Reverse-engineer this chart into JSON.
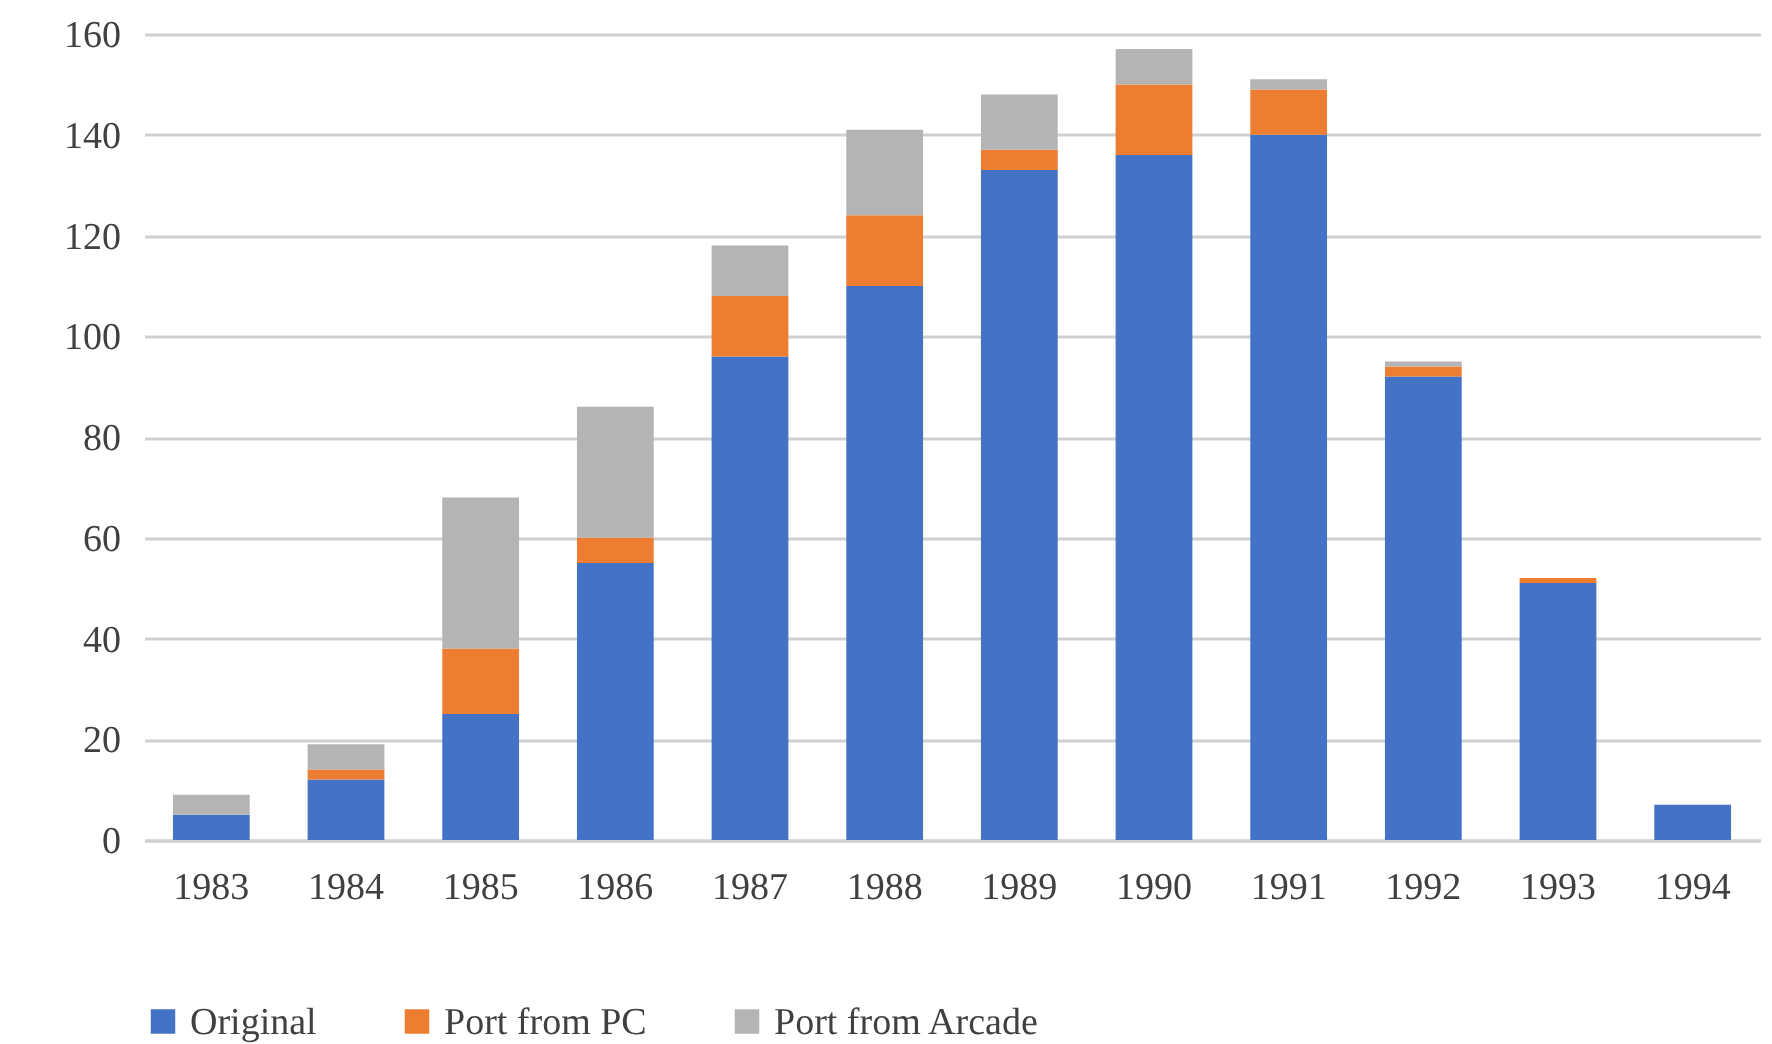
{
  "chart_data": {
    "type": "bar",
    "stacked": true,
    "categories": [
      "1983",
      "1984",
      "1985",
      "1986",
      "1987",
      "1988",
      "1989",
      "1990",
      "1991",
      "1992",
      "1993",
      "1994"
    ],
    "series": [
      {
        "name": "Original",
        "color": "#4472c4",
        "values": [
          5,
          12,
          25,
          55,
          96,
          110,
          133,
          136,
          140,
          92,
          51,
          7
        ]
      },
      {
        "name": "Port from PC",
        "color": "#ed7d31",
        "values": [
          0,
          2,
          13,
          5,
          12,
          14,
          4,
          14,
          9,
          2,
          1,
          0
        ]
      },
      {
        "name": "Port from Arcade",
        "color": "#b4b4b4",
        "values": [
          4,
          5,
          30,
          26,
          10,
          17,
          11,
          7,
          2,
          1,
          0,
          0
        ]
      }
    ],
    "ylim": [
      0,
      160
    ],
    "yticks": [
      0,
      20,
      40,
      60,
      80,
      100,
      120,
      140,
      160
    ],
    "grid": "y",
    "legend": "bottom"
  }
}
